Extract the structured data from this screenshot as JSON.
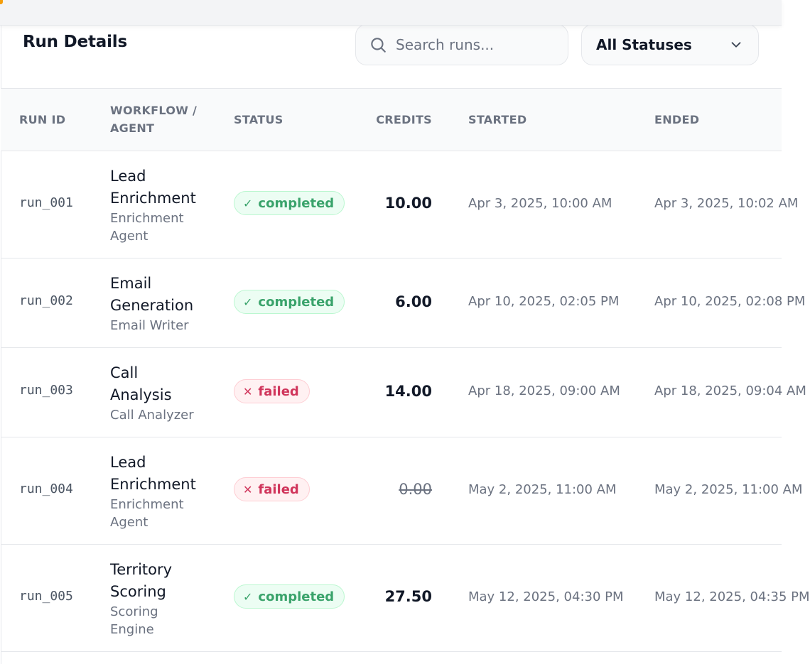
{
  "header": {
    "title": "Run Details",
    "search_placeholder": "Search runs...",
    "status_filter": "All Statuses"
  },
  "table": {
    "columns": [
      "RUN ID",
      "WORKFLOW / AGENT",
      "STATUS",
      "CREDITS",
      "STARTED",
      "ENDED"
    ],
    "rows": [
      {
        "run_id": "run_001",
        "workflow_line1": "Lead",
        "workflow_line2": "Enrichment",
        "agent_line1": "Enrichment",
        "agent_line2": "Agent",
        "status": "completed",
        "credits": "10.00",
        "started": "Apr 3, 2025, 10:00 AM",
        "ended": "Apr 3, 2025, 10:02 AM"
      },
      {
        "run_id": "run_002",
        "workflow_line1": "Email",
        "workflow_line2": "Generation",
        "agent_line1": "Email Writer",
        "agent_line2": "",
        "status": "completed",
        "credits": "6.00",
        "started": "Apr 10, 2025, 02:05 PM",
        "ended": "Apr 10, 2025, 02:08 PM"
      },
      {
        "run_id": "run_003",
        "workflow_line1": "Call",
        "workflow_line2": "Analysis",
        "agent_line1": "Call Analyzer",
        "agent_line2": "",
        "status": "failed",
        "credits": "14.00",
        "started": "Apr 18, 2025, 09:00 AM",
        "ended": "Apr 18, 2025, 09:04 AM"
      },
      {
        "run_id": "run_004",
        "workflow_line1": "Lead",
        "workflow_line2": "Enrichment",
        "agent_line1": "Enrichment",
        "agent_line2": "Agent",
        "status": "failed",
        "credits": "0.00",
        "started": "May 2, 2025, 11:00 AM",
        "ended": "May 2, 2025, 11:00 AM"
      },
      {
        "run_id": "run_005",
        "workflow_line1": "Territory",
        "workflow_line2": "Scoring",
        "agent_line1": "Scoring",
        "agent_line2": "Engine",
        "status": "completed",
        "credits": "27.50",
        "started": "May 12, 2025, 04:30 PM",
        "ended": "May 12, 2025, 04:35 PM"
      }
    ]
  },
  "colors": {
    "completed": "#3aa36b",
    "failed": "#d0355b"
  },
  "icons": {
    "search": "search-icon",
    "dropdown": "chevron-down-icon",
    "completed": "check-icon",
    "failed": "x-icon"
  }
}
